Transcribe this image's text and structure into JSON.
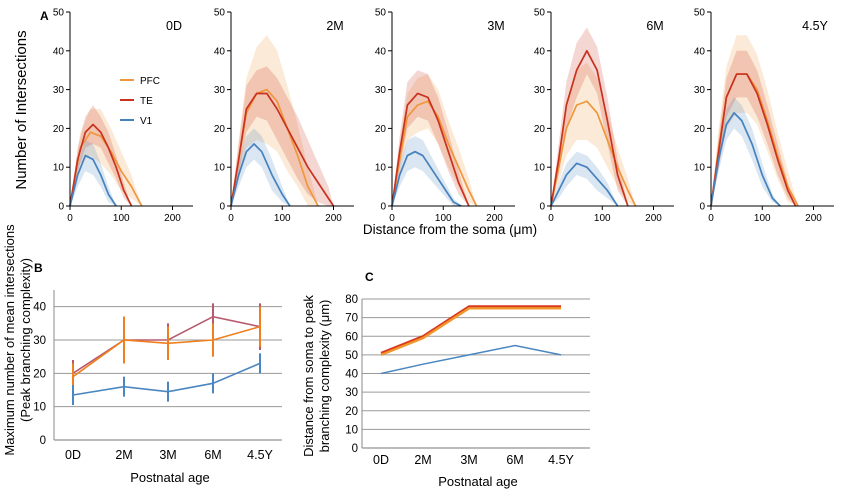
{
  "colors": {
    "PFC": "#f0963c",
    "TE": "#c8321e",
    "V1": "#4682be"
  },
  "panel_a": {
    "label": "A",
    "ylabel": "Number of Intersections",
    "xlabel": "Distance from the soma (μm)",
    "legend": [
      "PFC",
      "TE",
      "V1"
    ]
  },
  "panel_b": {
    "label": "B",
    "ylabel_line1": "Maximum number of mean intersections",
    "ylabel_line2": "(Peak branching complexity)",
    "xlabel": "Postnatal age"
  },
  "panel_c": {
    "label": "C",
    "ylabel_line1": "Distance from soma to peak",
    "ylabel_line2": "branching complexity (μm)",
    "xlabel": "Postnatal age"
  },
  "chart_data": [
    {
      "type": "line",
      "panel": "A",
      "title": "0D",
      "xlim": [
        0,
        240
      ],
      "ylim": [
        0,
        50
      ],
      "xticks": [
        0,
        100,
        200
      ],
      "yticks": [
        0,
        10,
        20,
        30,
        40,
        50
      ],
      "series": [
        {
          "name": "PFC",
          "x": [
            0,
            20,
            40,
            60,
            80,
            100,
            120,
            140
          ],
          "y": [
            0,
            15,
            19,
            18,
            14,
            9,
            5,
            0
          ],
          "sd": [
            0,
            4,
            6,
            7,
            6,
            5,
            3,
            0
          ]
        },
        {
          "name": "TE",
          "x": [
            0,
            15,
            30,
            45,
            60,
            75,
            90,
            105,
            120
          ],
          "y": [
            0,
            12,
            19,
            21,
            19,
            15,
            10,
            4,
            0
          ],
          "sd": [
            0,
            3,
            4,
            5,
            4,
            4,
            3,
            2,
            0
          ]
        },
        {
          "name": "V1",
          "x": [
            0,
            15,
            30,
            45,
            60,
            75,
            90
          ],
          "y": [
            0,
            8,
            13,
            12,
            8,
            3,
            0
          ],
          "sd": [
            0,
            3,
            4,
            4,
            3,
            2,
            0
          ]
        }
      ]
    },
    {
      "type": "line",
      "panel": "A",
      "title": "2M",
      "xlim": [
        0,
        240
      ],
      "ylim": [
        0,
        50
      ],
      "xticks": [
        0,
        100,
        200
      ],
      "yticks": [
        0,
        10,
        20,
        30,
        40,
        50
      ],
      "series": [
        {
          "name": "PFC",
          "x": [
            0,
            15,
            30,
            50,
            70,
            90,
            110,
            130,
            150,
            170
          ],
          "y": [
            0,
            12,
            24,
            29,
            30,
            27,
            20,
            13,
            5,
            0
          ],
          "sd": [
            0,
            5,
            9,
            12,
            14,
            13,
            11,
            8,
            5,
            0
          ]
        },
        {
          "name": "TE",
          "x": [
            0,
            15,
            30,
            50,
            70,
            90,
            110,
            130,
            150,
            170,
            190,
            200
          ],
          "y": [
            0,
            12,
            25,
            29,
            29,
            25,
            20,
            15,
            10,
            6,
            2,
            0
          ],
          "sd": [
            0,
            4,
            6,
            6,
            7,
            8,
            8,
            8,
            7,
            5,
            3,
            0
          ]
        },
        {
          "name": "V1",
          "x": [
            0,
            15,
            30,
            45,
            60,
            80,
            100,
            115
          ],
          "y": [
            0,
            8,
            14,
            16,
            14,
            8,
            3,
            0
          ],
          "sd": [
            0,
            3,
            4,
            4,
            4,
            4,
            2,
            0
          ]
        }
      ]
    },
    {
      "type": "line",
      "panel": "A",
      "title": "3M",
      "xlim": [
        0,
        240
      ],
      "ylim": [
        0,
        50
      ],
      "xticks": [
        0,
        100,
        200
      ],
      "yticks": [
        0,
        10,
        20,
        30,
        40,
        50
      ],
      "series": [
        {
          "name": "PFC",
          "x": [
            0,
            15,
            30,
            50,
            70,
            90,
            110,
            130,
            150,
            165
          ],
          "y": [
            0,
            12,
            23,
            26,
            27,
            23,
            16,
            10,
            4,
            0
          ],
          "sd": [
            0,
            4,
            6,
            7,
            7,
            7,
            6,
            5,
            3,
            0
          ]
        },
        {
          "name": "TE",
          "x": [
            0,
            15,
            30,
            50,
            70,
            90,
            110,
            130,
            150
          ],
          "y": [
            0,
            14,
            26,
            29,
            28,
            22,
            14,
            6,
            0
          ],
          "sd": [
            0,
            4,
            6,
            6,
            6,
            6,
            5,
            3,
            0
          ]
        },
        {
          "name": "V1",
          "x": [
            0,
            15,
            30,
            45,
            60,
            80,
            100,
            120,
            135
          ],
          "y": [
            0,
            8,
            13,
            14,
            13,
            9,
            5,
            1,
            0
          ],
          "sd": [
            0,
            3,
            4,
            4,
            4,
            3,
            2,
            1,
            0
          ]
        }
      ]
    },
    {
      "type": "line",
      "panel": "A",
      "title": "6M",
      "xlim": [
        0,
        240
      ],
      "ylim": [
        0,
        50
      ],
      "xticks": [
        0,
        100,
        200
      ],
      "yticks": [
        0,
        10,
        20,
        30,
        40,
        50
      ],
      "series": [
        {
          "name": "PFC",
          "x": [
            0,
            15,
            30,
            50,
            70,
            90,
            110,
            130,
            150,
            165
          ],
          "y": [
            0,
            10,
            20,
            26,
            27,
            24,
            17,
            10,
            4,
            0
          ],
          "sd": [
            0,
            4,
            7,
            9,
            10,
            9,
            7,
            5,
            3,
            0
          ]
        },
        {
          "name": "TE",
          "x": [
            0,
            15,
            30,
            50,
            70,
            90,
            110,
            130,
            150
          ],
          "y": [
            0,
            12,
            26,
            35,
            40,
            35,
            22,
            8,
            0
          ],
          "sd": [
            0,
            4,
            6,
            7,
            6,
            6,
            6,
            4,
            0
          ]
        },
        {
          "name": "V1",
          "x": [
            0,
            15,
            30,
            50,
            70,
            90,
            110,
            130
          ],
          "y": [
            0,
            4,
            8,
            11,
            10,
            7,
            4,
            0
          ],
          "sd": [
            0,
            2,
            3,
            3,
            3,
            3,
            2,
            0
          ]
        }
      ]
    },
    {
      "type": "line",
      "panel": "A",
      "title": "4.5Y",
      "xlim": [
        0,
        240
      ],
      "ylim": [
        0,
        50
      ],
      "xticks": [
        0,
        100,
        200
      ],
      "yticks": [
        0,
        10,
        20,
        30,
        40,
        50
      ],
      "series": [
        {
          "name": "PFC",
          "x": [
            0,
            15,
            30,
            50,
            70,
            90,
            110,
            130,
            150,
            170
          ],
          "y": [
            0,
            15,
            28,
            34,
            34,
            30,
            22,
            13,
            5,
            0
          ],
          "sd": [
            0,
            5,
            8,
            10,
            10,
            9,
            8,
            6,
            4,
            0
          ]
        },
        {
          "name": "TE",
          "x": [
            0,
            15,
            30,
            50,
            70,
            90,
            110,
            130,
            150,
            165
          ],
          "y": [
            0,
            14,
            28,
            34,
            34,
            29,
            21,
            12,
            4,
            0
          ],
          "sd": [
            0,
            4,
            5,
            6,
            6,
            6,
            5,
            4,
            2,
            0
          ]
        },
        {
          "name": "V1",
          "x": [
            0,
            15,
            30,
            45,
            60,
            80,
            100,
            120,
            135
          ],
          "y": [
            0,
            12,
            21,
            24,
            22,
            16,
            8,
            2,
            0
          ],
          "sd": [
            0,
            3,
            4,
            4,
            4,
            4,
            3,
            1,
            0
          ]
        }
      ]
    },
    {
      "type": "line",
      "panel": "B",
      "categories": [
        "0D",
        "2M",
        "3M",
        "6M",
        "4.5Y"
      ],
      "ylim": [
        0,
        45
      ],
      "yticks": [
        0,
        10,
        20,
        30,
        40
      ],
      "series": [
        {
          "name": "TE",
          "values": [
            20,
            30,
            30,
            37,
            34
          ],
          "err": [
            4,
            7,
            5,
            4,
            7
          ]
        },
        {
          "name": "PFC",
          "values": [
            19,
            30,
            29,
            30,
            34
          ],
          "err": [
            4,
            7,
            5,
            5,
            6
          ]
        },
        {
          "name": "V1",
          "values": [
            13.5,
            16,
            14.5,
            17,
            23
          ],
          "err": [
            3,
            3,
            3,
            3,
            3
          ]
        }
      ]
    },
    {
      "type": "line",
      "panel": "C",
      "categories": [
        "0D",
        "2M",
        "3M",
        "6M",
        "4.5Y"
      ],
      "ylim": [
        0,
        80
      ],
      "yticks": [
        0,
        10,
        20,
        30,
        40,
        50,
        60,
        70,
        80
      ],
      "series": [
        {
          "name": "TE",
          "values": [
            51,
            60,
            76,
            76,
            76
          ]
        },
        {
          "name": "PFC",
          "values": [
            50,
            59,
            75,
            75,
            75
          ]
        },
        {
          "name": "V1",
          "values": [
            40,
            45,
            50,
            55,
            50
          ]
        }
      ]
    }
  ]
}
